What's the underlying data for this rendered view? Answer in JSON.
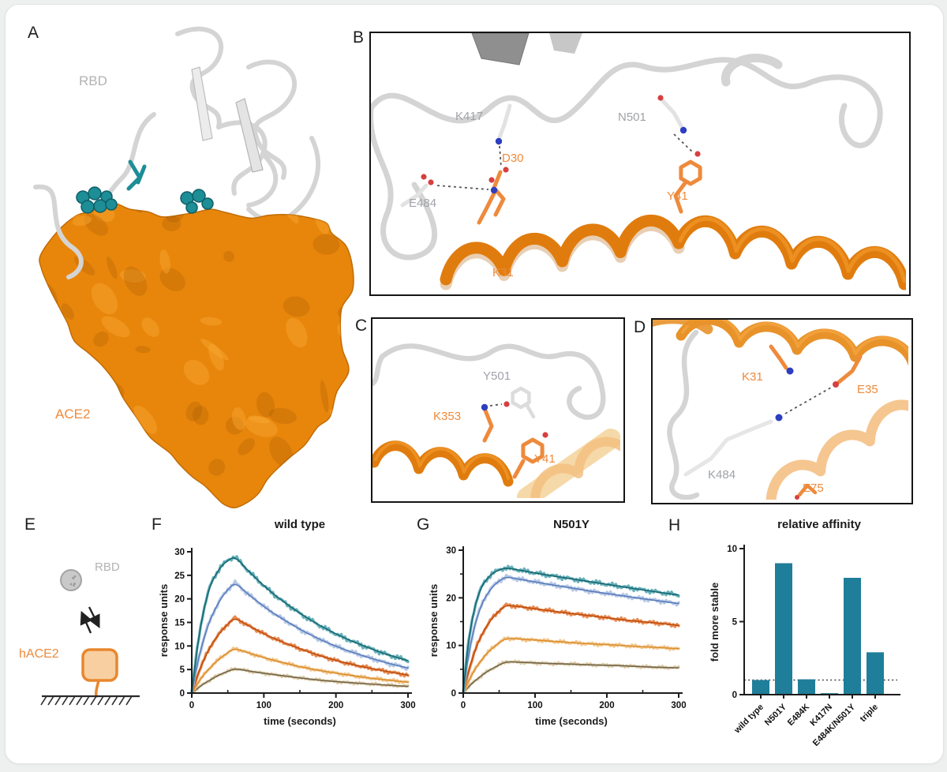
{
  "colors": {
    "ace2_surface": "#e8860b",
    "ace2_surface_dark": "#a85c05",
    "ace2_surface_light": "#f9a832",
    "helix_orange": "#e07c0e",
    "pale_ribbon": "#f6d9a8",
    "ribbon_gray": "#d4d4d4",
    "teal": "#1f7e99",
    "teal_sphere": "#1d8d96",
    "label_orange": "#ee8a3c",
    "label_gray": "#a0a3a8",
    "nitrogen_blue": "#2d3fbe",
    "oxygen_red": "#d64040",
    "axis_black": "#1c1c1c"
  },
  "panels": {
    "A": {
      "letter": "A",
      "rbd_label": "RBD",
      "ace2_label": "ACE2"
    },
    "B": {
      "letter": "B",
      "residues": {
        "K417": "K417",
        "N501": "N501",
        "D30": "D30",
        "E484": "E484",
        "Y41": "Y41",
        "K31": "K31"
      }
    },
    "C": {
      "letter": "C",
      "residues": {
        "Y501": "Y501",
        "K353": "K353",
        "Y41": "Y41"
      }
    },
    "D": {
      "letter": "D",
      "residues": {
        "K31": "K31",
        "E35": "E35",
        "K484": "K484",
        "E75": "E75"
      }
    },
    "E": {
      "letter": "E",
      "rbd_label": "RBD",
      "hace2_label": "hACE2"
    },
    "F": {
      "letter": "F"
    },
    "G": {
      "letter": "G"
    },
    "H": {
      "letter": "H"
    }
  },
  "chart_data": [
    {
      "id": "wild_type",
      "type": "line",
      "title": "wild type",
      "xlabel": "time (seconds)",
      "ylabel": "response units",
      "xlim": [
        0,
        300
      ],
      "ylim": [
        0,
        30
      ],
      "xticks": [
        0,
        100,
        200,
        300
      ],
      "xticks_minor": [
        50,
        150,
        250
      ],
      "yticks": [
        0,
        5,
        10,
        15,
        20,
        25,
        30
      ],
      "yticks_minor": [],
      "x": [
        0,
        5,
        10,
        15,
        20,
        25,
        30,
        40,
        50,
        60,
        75,
        90,
        105,
        120,
        150,
        180,
        210,
        240,
        270,
        300
      ],
      "series": [
        {
          "name": "highest-concentration-teal",
          "fit_color": "#176773",
          "data_color": "#4da3ad",
          "values": [
            0,
            6.5,
            12,
            16.5,
            19.8,
            22.5,
            24.3,
            26.8,
            28.2,
            29,
            26.5,
            24.2,
            22.1,
            20.2,
            16.9,
            14.1,
            11.8,
            9.9,
            8.2,
            6.9
          ]
        },
        {
          "name": "concentration-2-blue",
          "fit_color": "#5b7cbd",
          "data_color": "#a8bedf",
          "values": [
            0,
            4.2,
            7.7,
            10.6,
            13.2,
            15.3,
            17.1,
            20,
            22,
            23.5,
            21.4,
            19.6,
            17.8,
            16.3,
            13.5,
            11.2,
            9.3,
            7.8,
            6.4,
            5.3
          ]
        },
        {
          "name": "concentration-3-orange",
          "fit_color": "#c14e0d",
          "data_color": "#e0793a",
          "values": [
            0,
            2.4,
            4.6,
            6.4,
            8.1,
            9.6,
            10.9,
            13,
            14.7,
            16,
            14.6,
            13.4,
            12.2,
            11.2,
            9.4,
            7.8,
            6.5,
            5.5,
            4.6,
            3.8
          ]
        },
        {
          "name": "concentration-4-light-orange",
          "fit_color": "#db8f2e",
          "data_color": "#f0bd7d",
          "values": [
            0,
            1.3,
            2.5,
            3.5,
            4.5,
            5.3,
            6.1,
            7.5,
            8.6,
            9.5,
            8.7,
            8,
            7.3,
            6.7,
            5.6,
            4.7,
            4,
            3.3,
            2.8,
            2.3
          ]
        },
        {
          "name": "lowest-concentration-tan",
          "fit_color": "#70654b",
          "data_color": "#d9c49a",
          "values": [
            0,
            0.6,
            1.2,
            1.8,
            2.3,
            2.7,
            3.2,
            4,
            4.6,
            5.2,
            4.8,
            4.4,
            4.1,
            3.8,
            3.2,
            2.7,
            2.3,
            2,
            1.7,
            1.4
          ]
        }
      ]
    },
    {
      "id": "n501y",
      "type": "line",
      "title": "N501Y",
      "xlabel": "time (seconds)",
      "ylabel": "response units",
      "xlim": [
        0,
        300
      ],
      "ylim": [
        0,
        30
      ],
      "xticks": [
        0,
        100,
        200,
        300
      ],
      "xticks_minor": [
        50,
        150,
        250
      ],
      "yticks": [
        0,
        10,
        20,
        30
      ],
      "yticks_minor": [
        5,
        15,
        25
      ],
      "x": [
        0,
        5,
        10,
        15,
        20,
        25,
        30,
        40,
        50,
        60,
        75,
        90,
        105,
        120,
        150,
        180,
        210,
        240,
        270,
        300
      ],
      "series": [
        {
          "name": "highest-concentration-teal",
          "fit_color": "#176773",
          "data_color": "#4da3ad",
          "values": [
            0,
            7.9,
            13.4,
            17.4,
            20.1,
            22.1,
            23.4,
            25.1,
            25.9,
            26.3,
            25.9,
            25.5,
            25.1,
            24.7,
            24,
            23.3,
            22.6,
            21.9,
            21.2,
            20.6
          ]
        },
        {
          "name": "concentration-2-blue",
          "fit_color": "#5b7cbd",
          "data_color": "#a8bedf",
          "values": [
            0,
            5.7,
            10.1,
            13.6,
            16.2,
            18.3,
            20,
            22.2,
            23.6,
            24.4,
            24,
            23.6,
            23.2,
            22.8,
            22.1,
            21.3,
            20.7,
            20,
            19.4,
            18.8
          ]
        },
        {
          "name": "concentration-3-orange",
          "fit_color": "#c14e0d",
          "data_color": "#e0793a",
          "values": [
            0,
            3.2,
            5.9,
            8.3,
            10.3,
            12,
            13.4,
            15.7,
            17.3,
            18.5,
            18.2,
            17.9,
            17.6,
            17.3,
            16.7,
            16.2,
            15.6,
            15.1,
            14.7,
            14.2
          ]
        },
        {
          "name": "concentration-4-light-orange",
          "fit_color": "#db8f2e",
          "data_color": "#f0bd7d",
          "values": [
            0,
            1.7,
            3.3,
            4.6,
            5.8,
            6.9,
            7.8,
            9.4,
            10.6,
            11.5,
            11.4,
            11.2,
            11.1,
            10.9,
            10.6,
            10.3,
            10.1,
            9.8,
            9.6,
            9.3
          ]
        },
        {
          "name": "lowest-concentration-tan",
          "fit_color": "#70654b",
          "data_color": "#d9c49a",
          "values": [
            0,
            0.9,
            1.7,
            2.4,
            3,
            3.6,
            4.2,
            5.1,
            5.9,
            6.6,
            6.5,
            6.4,
            6.3,
            6.2,
            6.1,
            5.9,
            5.8,
            5.6,
            5.4,
            5.3
          ]
        }
      ]
    },
    {
      "id": "relative_affinity",
      "type": "bar",
      "title": "relative affinity",
      "ylabel": "fold more stable",
      "ylim": [
        0,
        10
      ],
      "yticks": [
        0,
        5,
        10
      ],
      "categories": [
        "wild type",
        "N501Y",
        "E484K",
        "K417N",
        "E484K/N501Y",
        "triple"
      ],
      "values": [
        1.0,
        9.0,
        1.05,
        0.1,
        8.0,
        2.9
      ],
      "reference_line": 1.0,
      "bar_color": "#1f7e99"
    }
  ]
}
